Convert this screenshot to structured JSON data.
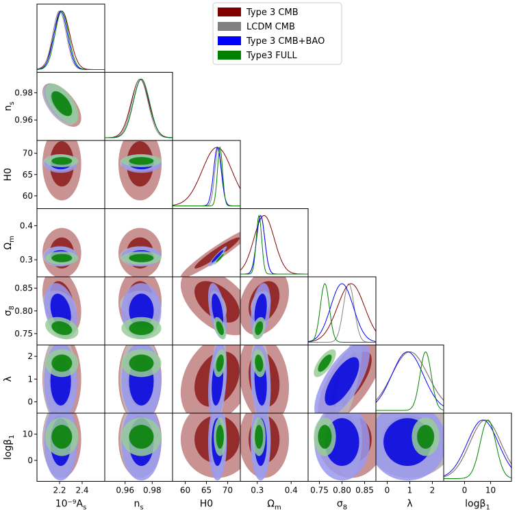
{
  "chart_data": {
    "type": "triangle-corner-plot",
    "parameters": [
      {
        "key": "As",
        "label": "10⁻⁹A",
        "sub": "s",
        "range": [
          2.0,
          2.6
        ],
        "ticks": [
          2.2,
          2.4
        ],
        "tick_labels": [
          "2.2",
          "2.4"
        ]
      },
      {
        "key": "ns",
        "label": "n",
        "sub": "s",
        "range": [
          0.945,
          0.995
        ],
        "ticks": [
          0.96,
          0.98
        ],
        "tick_labels": [
          "0.96",
          "0.98"
        ]
      },
      {
        "key": "H0",
        "label": "H0",
        "sub": "",
        "range": [
          57,
          73
        ],
        "ticks": [
          60,
          65,
          70
        ],
        "tick_labels": [
          "60",
          "65",
          "70"
        ]
      },
      {
        "key": "Om",
        "label": "Ω",
        "sub": "m",
        "range": [
          0.25,
          0.45
        ],
        "ticks": [
          0.3,
          0.4
        ],
        "tick_labels": [
          "0.3",
          "0.4"
        ]
      },
      {
        "key": "s8",
        "label": "σ",
        "sub": "8",
        "range": [
          0.725,
          0.875
        ],
        "ticks": [
          0.75,
          0.8,
          0.85
        ],
        "tick_labels": [
          "0.75",
          "0.80",
          "0.85"
        ]
      },
      {
        "key": "lam",
        "label": "λ",
        "sub": "",
        "range": [
          -0.5,
          2.5
        ],
        "ticks": [
          0,
          1,
          2
        ],
        "tick_labels": [
          "0",
          "1",
          "2"
        ]
      },
      {
        "key": "logb",
        "label": "logβ",
        "sub": "1",
        "range": [
          -8,
          18
        ],
        "ticks": [
          0,
          10
        ],
        "tick_labels": [
          "0",
          "10"
        ]
      }
    ],
    "series": [
      {
        "name": "Type 3 CMB",
        "color": "#800000",
        "fill_outer": "#c08080",
        "fill_inner": "#8b1a1a",
        "means": {
          "As": 2.22,
          "ns": 0.971,
          "H0": 67.5,
          "Om": 0.32,
          "s8": 0.82,
          "lam": 1.0,
          "logb": 8
        },
        "sds": {
          "As": 0.07,
          "ns": 0.0065,
          "H0": 3.5,
          "Om": 0.03,
          "s8": 0.03,
          "lam": 0.8,
          "logb": 6
        }
      },
      {
        "name": "LCDM CMB",
        "color": "#808080",
        "fill_outer": "#bcbcbc",
        "fill_inner": "#8c8c8c",
        "means": {
          "As": 2.2,
          "ns": 0.971,
          "H0": 67.8,
          "Om": 0.31,
          "s8": 0.815,
          "lam": 1.0,
          "logb": 8
        },
        "sds": {
          "As": 0.06,
          "ns": 0.006,
          "H0": 0.8,
          "Om": 0.012,
          "s8": 0.012,
          "lam": 0.8,
          "logb": 6
        }
      },
      {
        "name": "Type 3 CMB+BAO",
        "color": "#0000ff",
        "fill_outer": "#9999ee",
        "fill_inner": "#0000dd",
        "means": {
          "As": 2.21,
          "ns": 0.972,
          "H0": 67.6,
          "Om": 0.31,
          "s8": 0.8,
          "lam": 0.9,
          "logb": 7
        },
        "sds": {
          "As": 0.06,
          "ns": 0.006,
          "H0": 0.9,
          "Om": 0.012,
          "s8": 0.025,
          "lam": 0.7,
          "logb": 6
        }
      },
      {
        "name": "Type3 FULL",
        "color": "#008000",
        "fill_outer": "#99cc99",
        "fill_inner": "#008000",
        "means": {
          "As": 2.22,
          "ns": 0.972,
          "H0": 68.2,
          "Om": 0.305,
          "s8": 0.762,
          "lam": 1.7,
          "logb": 9
        },
        "sds": {
          "As": 0.06,
          "ns": 0.006,
          "H0": 0.6,
          "Om": 0.008,
          "s8": 0.01,
          "lam": 0.25,
          "logb": 3
        }
      }
    ],
    "legend_position": "top-right",
    "grid": false
  }
}
